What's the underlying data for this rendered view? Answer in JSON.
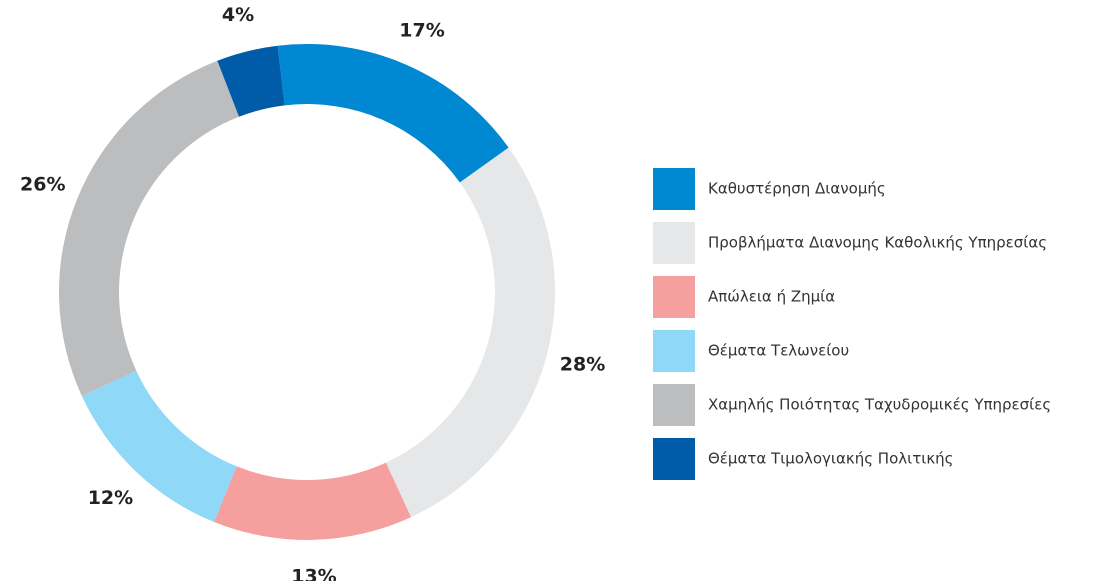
{
  "chart_data": {
    "type": "donut",
    "categories": [
      "Καθυστέρηση Διανομής",
      "Προβλήματα Διανομης Καθολικής Υπηρεσίας",
      "Απώλεια ή Ζημία",
      "Θέματα Τελωνείου",
      "Χαμηλής Ποιότητας Ταχυδρομικές Υπηρεσίες",
      "Θέματα Τιμολογιακής Πολιτικής"
    ],
    "values": [
      17,
      28,
      13,
      12,
      26,
      4
    ],
    "value_labels": [
      "17%",
      "28%",
      "13%",
      "12%",
      "26%",
      "4%"
    ],
    "colors": [
      "#0089d2",
      "#e6e7e8",
      "#f5a09e",
      "#8fd8f7",
      "#bcbdbf",
      "#005ca8"
    ],
    "legend": "right"
  }
}
